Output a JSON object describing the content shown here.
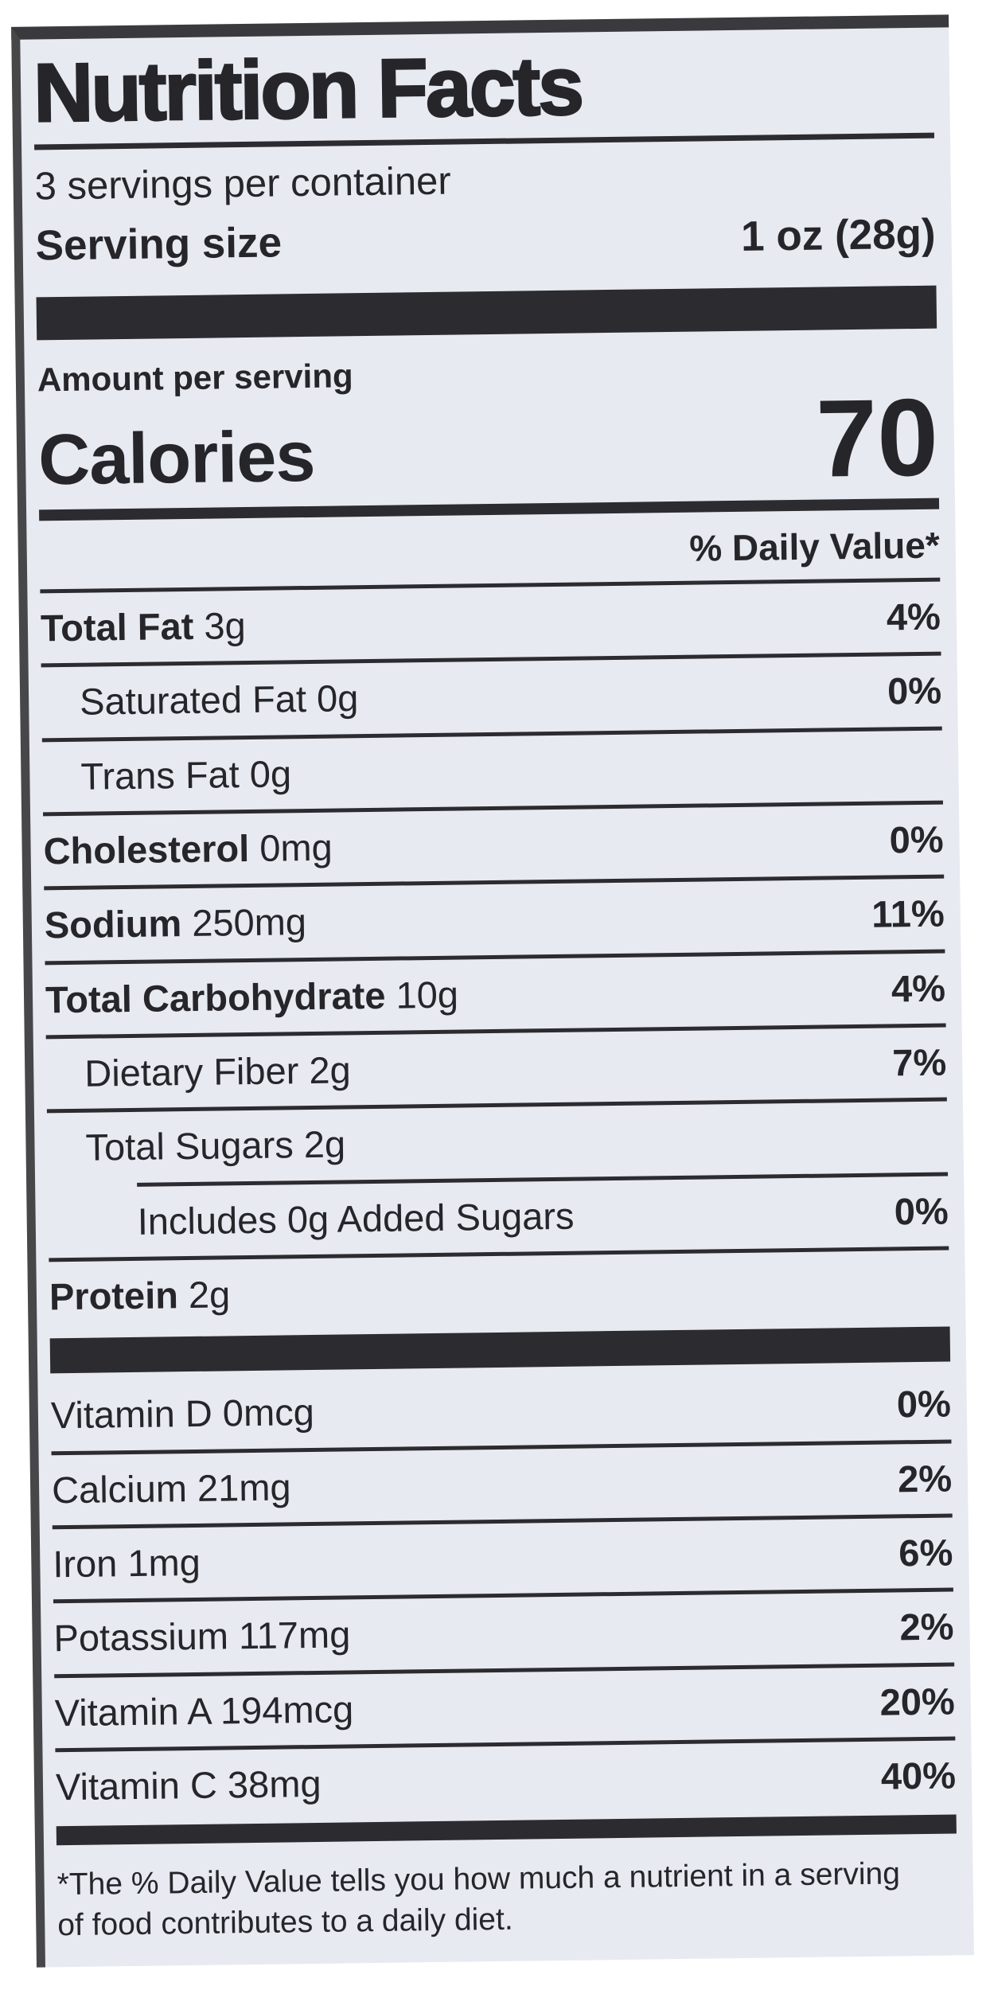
{
  "colors": {
    "label_background": "#e7eaf1",
    "ink": "#26262a",
    "page_background": "#ffffff"
  },
  "label": {
    "title": "Nutrition Facts",
    "servings_per_container": "3 servings per container",
    "serving_size_label": "Serving size",
    "serving_size_value": "1 oz (28g)",
    "amount_per_serving_label": "Amount per serving",
    "calories_label": "Calories",
    "calories_value": "70",
    "daily_value_header": "% Daily Value*",
    "macronutrients": [
      {
        "name": "Total Fat",
        "amount": "3g",
        "daily_value": "4%",
        "bold": true,
        "indent": 0
      },
      {
        "name": "Saturated Fat",
        "amount": "0g",
        "daily_value": "0%",
        "bold": false,
        "indent": 1
      },
      {
        "name": "Trans Fat",
        "amount": "0g",
        "daily_value": "",
        "bold": false,
        "indent": 1
      },
      {
        "name": "Cholesterol",
        "amount": "0mg",
        "daily_value": "0%",
        "bold": true,
        "indent": 0
      },
      {
        "name": "Sodium",
        "amount": "250mg",
        "daily_value": "11%",
        "bold": true,
        "indent": 0
      },
      {
        "name": "Total Carbohydrate",
        "amount": "10g",
        "daily_value": "4%",
        "bold": true,
        "indent": 0
      },
      {
        "name": "Dietary Fiber",
        "amount": "2g",
        "daily_value": "7%",
        "bold": false,
        "indent": 1
      },
      {
        "name": "Total Sugars",
        "amount": "2g",
        "daily_value": "",
        "bold": false,
        "indent": 1
      },
      {
        "name": "Includes 0g Added Sugars",
        "amount": "",
        "daily_value": "0%",
        "bold": false,
        "indent": 2
      },
      {
        "name": "Protein",
        "amount": "2g",
        "daily_value": "",
        "bold": true,
        "indent": 0
      }
    ],
    "micronutrients": [
      {
        "name": "Vitamin D",
        "amount": "0mcg",
        "daily_value": "0%"
      },
      {
        "name": "Calcium",
        "amount": "21mg",
        "daily_value": "2%"
      },
      {
        "name": "Iron",
        "amount": "1mg",
        "daily_value": "6%"
      },
      {
        "name": "Potassium",
        "amount": "117mg",
        "daily_value": "2%"
      },
      {
        "name": "Vitamin A",
        "amount": "194mcg",
        "daily_value": "20%"
      },
      {
        "name": "Vitamin C",
        "amount": "38mg",
        "daily_value": "40%"
      }
    ],
    "footnote": "*The % Daily Value tells you how much a nutrient in a serving of food contributes to a daily diet."
  }
}
